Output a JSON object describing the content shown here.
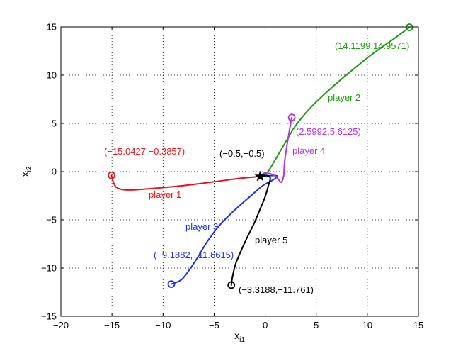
{
  "chart_data": {
    "type": "line",
    "xlabel": "x",
    "xlabel_sub": "i1",
    "ylabel": "x",
    "ylabel_sub": "i2",
    "xlim": [
      -20,
      15
    ],
    "ylim": [
      -15,
      15
    ],
    "xticks": [
      -20,
      -15,
      -10,
      -5,
      0,
      5,
      10,
      15
    ],
    "yticks": [
      -15,
      -10,
      -5,
      0,
      5,
      10,
      15
    ],
    "xtick_labels": [
      "−20",
      "−15",
      "−10",
      "−5",
      "0",
      "5",
      "10",
      "15"
    ],
    "ytick_labels": [
      "−15",
      "−10",
      "−5",
      "0",
      "5",
      "10",
      "15"
    ],
    "grid": true,
    "equilibrium": {
      "x": -0.5,
      "y": -0.5,
      "label": "(−0.5,−0.5)",
      "marker": "star",
      "color": "#000000"
    },
    "series": [
      {
        "name": "player 1",
        "color": "#e6141e",
        "start": {
          "x": -15.0427,
          "y": -0.3857
        },
        "start_label": "(−15.0427,−0.3857)",
        "x": [
          -15.0427,
          -14.9,
          -14.6,
          -14.0,
          -13.0,
          -11.0,
          -8.0,
          -5.0,
          -2.5,
          -1.0,
          -0.5
        ],
        "y": [
          -0.3857,
          -1.0,
          -1.6,
          -1.85,
          -1.9,
          -1.75,
          -1.45,
          -1.05,
          -0.7,
          -0.55,
          -0.5
        ]
      },
      {
        "name": "player 2",
        "color": "#1e9b14",
        "start": {
          "x": 14.1199,
          "y": 14.9571
        },
        "start_label": "(14.1199,14.9571)",
        "x": [
          14.1199,
          12.5,
          10.5,
          8.5,
          6.5,
          4.5,
          3.0,
          1.8,
          0.8,
          0.2,
          -0.5
        ],
        "y": [
          14.9571,
          13.7,
          12.2,
          10.5,
          8.7,
          6.7,
          4.8,
          2.7,
          0.9,
          -0.1,
          -0.5
        ]
      },
      {
        "name": "player 3",
        "color": "#1e32e6",
        "start": {
          "x": -9.1882,
          "y": -11.6615
        },
        "start_label": "(−9.1882,−11.6615)",
        "x": [
          -9.1882,
          -8.2,
          -7.3,
          -6.5,
          -5.7,
          -4.5,
          -3.0,
          -1.5,
          -0.3,
          0.7,
          1.2,
          0.8,
          -0.5
        ],
        "y": [
          -11.6615,
          -11.2,
          -10.0,
          -8.7,
          -7.3,
          -5.6,
          -4.0,
          -2.6,
          -1.5,
          -0.9,
          -0.5,
          -0.4,
          -0.5
        ]
      },
      {
        "name": "player 4",
        "color": "#b432e6",
        "start": {
          "x": 2.5992,
          "y": 5.6125
        },
        "start_label": "(2.5992,5.6125)",
        "x": [
          2.5992,
          2.5,
          2.3,
          2.1,
          1.9,
          1.8,
          1.55,
          1.3,
          0.9,
          0.4,
          0.0,
          -0.5
        ],
        "y": [
          5.6125,
          5.0,
          3.8,
          2.5,
          1.0,
          -0.5,
          -1.1,
          -0.8,
          -0.4,
          -0.2,
          -0.1,
          -0.5
        ]
      },
      {
        "name": "player 5",
        "color": "#000000",
        "start": {
          "x": -3.3188,
          "y": -11.761
        },
        "start_label": "(−3.3188,−11.761)",
        "x": [
          -3.3188,
          -3.2,
          -2.9,
          -2.4,
          -1.8,
          -1.1,
          -0.5,
          0.0,
          0.3,
          0.5,
          0.2,
          -0.5
        ],
        "y": [
          -11.761,
          -10.9,
          -9.6,
          -8.3,
          -6.9,
          -5.4,
          -3.9,
          -2.6,
          -1.5,
          -0.7,
          -0.4,
          -0.5
        ]
      }
    ]
  }
}
